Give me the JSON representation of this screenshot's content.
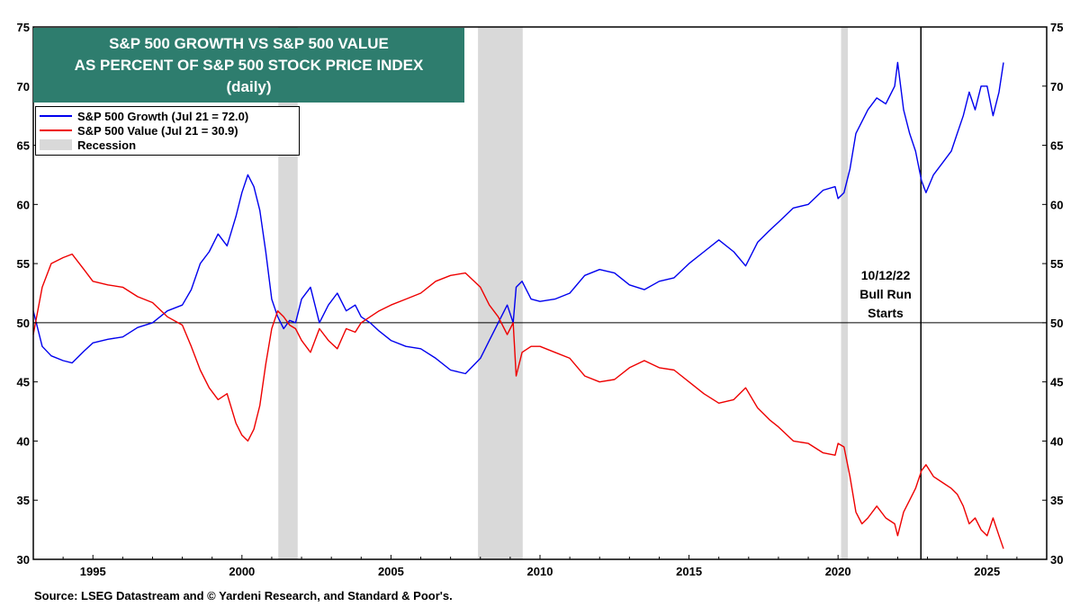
{
  "chart_data": {
    "type": "line",
    "title": "S&P 500 GROWTH VS S&P 500 VALUE",
    "subtitle": "AS PERCENT OF S&P 500 STOCK PRICE INDEX",
    "subtitle2": "(daily)",
    "xlim": [
      1993.0,
      2027.0
    ],
    "ylim": [
      30,
      75
    ],
    "x_ticks": [
      1995,
      2000,
      2005,
      2010,
      2015,
      2020,
      2025
    ],
    "x_tick_labels": [
      "1995",
      "2000",
      "2005",
      "2010",
      "2015",
      "2020",
      "2025"
    ],
    "y_ticks": [
      30,
      35,
      40,
      45,
      50,
      55,
      60,
      65,
      70,
      75
    ],
    "y_tick_labels": [
      "30",
      "35",
      "40",
      "45",
      "50",
      "55",
      "60",
      "65",
      "70",
      "75"
    ],
    "reference_line": 50,
    "legend_position": "top-left",
    "series": [
      {
        "name": "S&P 500 Growth (Jul 21 = 72.0)",
        "color": "#0000ee",
        "points": [
          [
            1993.0,
            51.0
          ],
          [
            1993.3,
            48.0
          ],
          [
            1993.6,
            47.2
          ],
          [
            1994.0,
            46.8
          ],
          [
            1994.3,
            46.6
          ],
          [
            1994.7,
            47.6
          ],
          [
            1995.0,
            48.3
          ],
          [
            1995.5,
            48.6
          ],
          [
            1996.0,
            48.8
          ],
          [
            1996.5,
            49.6
          ],
          [
            1997.0,
            50.0
          ],
          [
            1997.5,
            51.0
          ],
          [
            1998.0,
            51.5
          ],
          [
            1998.3,
            52.8
          ],
          [
            1998.6,
            55.0
          ],
          [
            1998.9,
            56.0
          ],
          [
            1999.2,
            57.5
          ],
          [
            1999.5,
            56.5
          ],
          [
            1999.8,
            59.0
          ],
          [
            2000.0,
            61.0
          ],
          [
            2000.2,
            62.5
          ],
          [
            2000.4,
            61.5
          ],
          [
            2000.6,
            59.5
          ],
          [
            2000.8,
            56.0
          ],
          [
            2001.0,
            52.0
          ],
          [
            2001.2,
            50.5
          ],
          [
            2001.4,
            49.5
          ],
          [
            2001.6,
            50.2
          ],
          [
            2001.8,
            50.0
          ],
          [
            2002.0,
            52.0
          ],
          [
            2002.3,
            53.0
          ],
          [
            2002.6,
            50.0
          ],
          [
            2002.9,
            51.5
          ],
          [
            2003.2,
            52.5
          ],
          [
            2003.5,
            51.0
          ],
          [
            2003.8,
            51.5
          ],
          [
            2004.0,
            50.5
          ],
          [
            2004.3,
            50.0
          ],
          [
            2004.6,
            49.3
          ],
          [
            2005.0,
            48.5
          ],
          [
            2005.5,
            48.0
          ],
          [
            2006.0,
            47.8
          ],
          [
            2006.5,
            47.0
          ],
          [
            2007.0,
            46.0
          ],
          [
            2007.5,
            45.7
          ],
          [
            2008.0,
            47.0
          ],
          [
            2008.3,
            48.5
          ],
          [
            2008.6,
            50.0
          ],
          [
            2008.9,
            51.5
          ],
          [
            2009.1,
            50.0
          ],
          [
            2009.2,
            53.0
          ],
          [
            2009.4,
            53.5
          ],
          [
            2009.7,
            52.0
          ],
          [
            2010.0,
            51.8
          ],
          [
            2010.5,
            52.0
          ],
          [
            2011.0,
            52.5
          ],
          [
            2011.5,
            54.0
          ],
          [
            2012.0,
            54.5
          ],
          [
            2012.5,
            54.2
          ],
          [
            2013.0,
            53.2
          ],
          [
            2013.5,
            52.8
          ],
          [
            2014.0,
            53.5
          ],
          [
            2014.5,
            53.8
          ],
          [
            2015.0,
            55.0
          ],
          [
            2015.5,
            56.0
          ],
          [
            2016.0,
            57.0
          ],
          [
            2016.5,
            56.0
          ],
          [
            2016.9,
            54.8
          ],
          [
            2017.3,
            56.8
          ],
          [
            2017.7,
            57.8
          ],
          [
            2018.0,
            58.5
          ],
          [
            2018.5,
            59.7
          ],
          [
            2019.0,
            60.0
          ],
          [
            2019.5,
            61.2
          ],
          [
            2019.9,
            61.5
          ],
          [
            2020.0,
            60.5
          ],
          [
            2020.2,
            61.0
          ],
          [
            2020.4,
            63.0
          ],
          [
            2020.6,
            66.0
          ],
          [
            2020.8,
            67.0
          ],
          [
            2021.0,
            68.0
          ],
          [
            2021.3,
            69.0
          ],
          [
            2021.6,
            68.5
          ],
          [
            2021.9,
            70.0
          ],
          [
            2022.0,
            72.0
          ],
          [
            2022.2,
            68.0
          ],
          [
            2022.4,
            66.0
          ],
          [
            2022.6,
            64.5
          ],
          [
            2022.8,
            62.0
          ],
          [
            2022.95,
            61.0
          ],
          [
            2023.2,
            62.5
          ],
          [
            2023.5,
            63.5
          ],
          [
            2023.8,
            64.5
          ],
          [
            2024.0,
            66.0
          ],
          [
            2024.2,
            67.5
          ],
          [
            2024.4,
            69.5
          ],
          [
            2024.6,
            68.0
          ],
          [
            2024.8,
            70.0
          ],
          [
            2025.0,
            70.0
          ],
          [
            2025.2,
            67.5
          ],
          [
            2025.4,
            69.5
          ],
          [
            2025.55,
            72.0
          ]
        ]
      },
      {
        "name": "S&P 500 Value (Jul 21 = 30.9)",
        "color": "#ee0000",
        "points": [
          [
            1993.0,
            49.0
          ],
          [
            1993.3,
            53.0
          ],
          [
            1993.6,
            55.0
          ],
          [
            1994.0,
            55.5
          ],
          [
            1994.3,
            55.8
          ],
          [
            1994.7,
            54.5
          ],
          [
            1995.0,
            53.5
          ],
          [
            1995.5,
            53.2
          ],
          [
            1996.0,
            53.0
          ],
          [
            1996.5,
            52.2
          ],
          [
            1997.0,
            51.7
          ],
          [
            1997.5,
            50.5
          ],
          [
            1998.0,
            49.8
          ],
          [
            1998.3,
            48.0
          ],
          [
            1998.6,
            46.0
          ],
          [
            1998.9,
            44.5
          ],
          [
            1999.2,
            43.5
          ],
          [
            1999.5,
            44.0
          ],
          [
            1999.8,
            41.5
          ],
          [
            2000.0,
            40.5
          ],
          [
            2000.2,
            40.0
          ],
          [
            2000.4,
            41.0
          ],
          [
            2000.6,
            43.0
          ],
          [
            2000.8,
            46.5
          ],
          [
            2001.0,
            49.5
          ],
          [
            2001.2,
            51.0
          ],
          [
            2001.4,
            50.5
          ],
          [
            2001.6,
            49.8
          ],
          [
            2001.8,
            49.5
          ],
          [
            2002.0,
            48.5
          ],
          [
            2002.3,
            47.5
          ],
          [
            2002.6,
            49.5
          ],
          [
            2002.9,
            48.5
          ],
          [
            2003.2,
            47.8
          ],
          [
            2003.5,
            49.5
          ],
          [
            2003.8,
            49.2
          ],
          [
            2004.0,
            50.0
          ],
          [
            2004.3,
            50.5
          ],
          [
            2004.6,
            51.0
          ],
          [
            2005.0,
            51.5
          ],
          [
            2005.5,
            52.0
          ],
          [
            2006.0,
            52.5
          ],
          [
            2006.5,
            53.5
          ],
          [
            2007.0,
            54.0
          ],
          [
            2007.5,
            54.2
          ],
          [
            2008.0,
            53.0
          ],
          [
            2008.3,
            51.5
          ],
          [
            2008.6,
            50.5
          ],
          [
            2008.9,
            49.0
          ],
          [
            2009.1,
            50.0
          ],
          [
            2009.2,
            45.5
          ],
          [
            2009.4,
            47.5
          ],
          [
            2009.7,
            48.0
          ],
          [
            2010.0,
            48.0
          ],
          [
            2010.5,
            47.5
          ],
          [
            2011.0,
            47.0
          ],
          [
            2011.5,
            45.5
          ],
          [
            2012.0,
            45.0
          ],
          [
            2012.5,
            45.2
          ],
          [
            2013.0,
            46.2
          ],
          [
            2013.5,
            46.8
          ],
          [
            2014.0,
            46.2
          ],
          [
            2014.5,
            46.0
          ],
          [
            2015.0,
            45.0
          ],
          [
            2015.5,
            44.0
          ],
          [
            2016.0,
            43.2
          ],
          [
            2016.5,
            43.5
          ],
          [
            2016.9,
            44.5
          ],
          [
            2017.3,
            42.8
          ],
          [
            2017.7,
            41.8
          ],
          [
            2018.0,
            41.2
          ],
          [
            2018.5,
            40.0
          ],
          [
            2019.0,
            39.8
          ],
          [
            2019.5,
            39.0
          ],
          [
            2019.9,
            38.8
          ],
          [
            2020.0,
            39.8
          ],
          [
            2020.2,
            39.5
          ],
          [
            2020.4,
            37.0
          ],
          [
            2020.6,
            34.0
          ],
          [
            2020.8,
            33.0
          ],
          [
            2021.0,
            33.5
          ],
          [
            2021.3,
            34.5
          ],
          [
            2021.6,
            33.5
          ],
          [
            2021.9,
            33.0
          ],
          [
            2022.0,
            32.0
          ],
          [
            2022.2,
            34.0
          ],
          [
            2022.4,
            35.0
          ],
          [
            2022.6,
            36.0
          ],
          [
            2022.8,
            37.5
          ],
          [
            2022.95,
            38.0
          ],
          [
            2023.2,
            37.0
          ],
          [
            2023.5,
            36.5
          ],
          [
            2023.8,
            36.0
          ],
          [
            2024.0,
            35.5
          ],
          [
            2024.2,
            34.5
          ],
          [
            2024.4,
            33.0
          ],
          [
            2024.6,
            33.5
          ],
          [
            2024.8,
            32.5
          ],
          [
            2025.0,
            32.0
          ],
          [
            2025.2,
            33.5
          ],
          [
            2025.4,
            32.0
          ],
          [
            2025.55,
            30.9
          ]
        ]
      }
    ],
    "recessions": [
      [
        2001.22,
        2001.87
      ],
      [
        2007.92,
        2009.42
      ],
      [
        2020.1,
        2020.33
      ]
    ],
    "recession_label": "Recession",
    "recession_color": "#d9d9d9",
    "event_line_x": 2022.78,
    "annotation_lines": [
      "10/12/22",
      "Bull Run",
      "Starts"
    ],
    "source": "Source: LSEG Datastream and © Yardeni Research, and Standard & Poor's."
  },
  "colors": {
    "title_bg": "#2e7d6e"
  }
}
